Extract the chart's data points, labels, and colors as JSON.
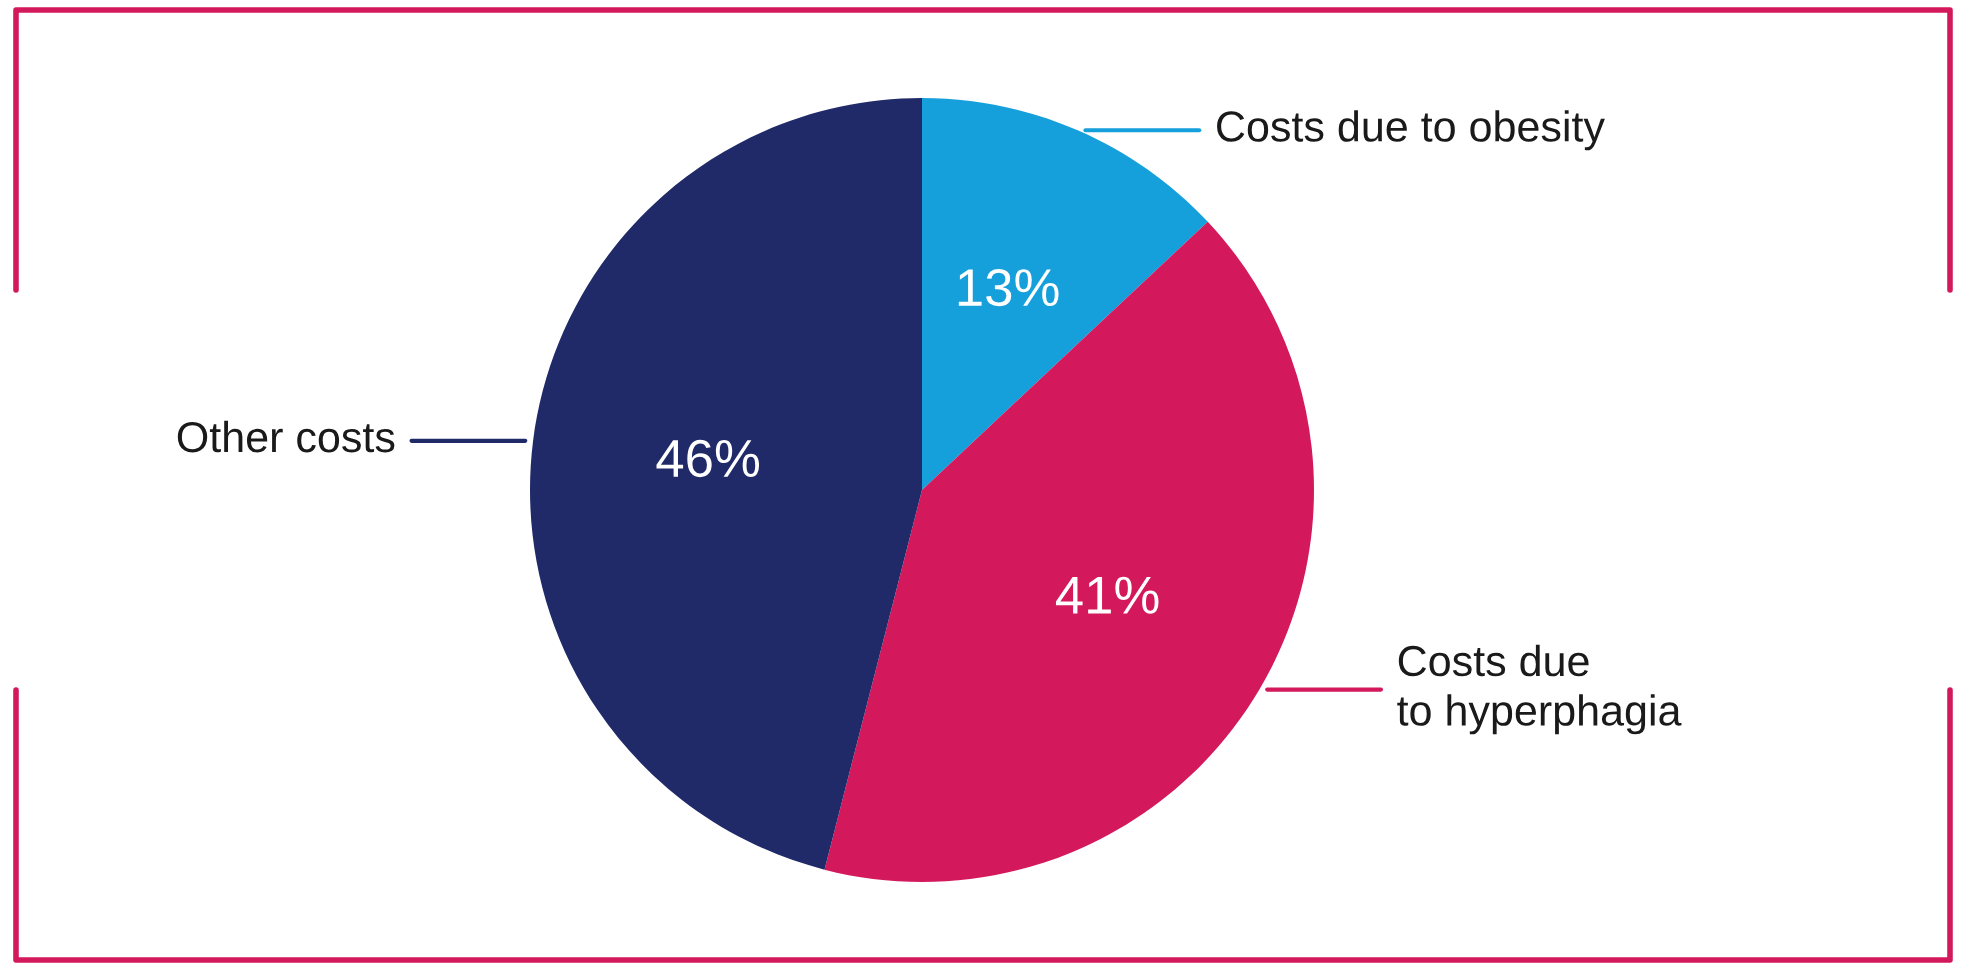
{
  "chart_data": {
    "type": "pie",
    "categories": [
      "Costs due to obesity",
      "Costs due\nto hyperphagia",
      "Other costs"
    ],
    "values": [
      13,
      41,
      46
    ],
    "colors": [
      "#159fdb",
      "#d4185c",
      "#202a68"
    ],
    "value_labels": [
      "13%",
      "41%",
      "46%"
    ]
  }
}
